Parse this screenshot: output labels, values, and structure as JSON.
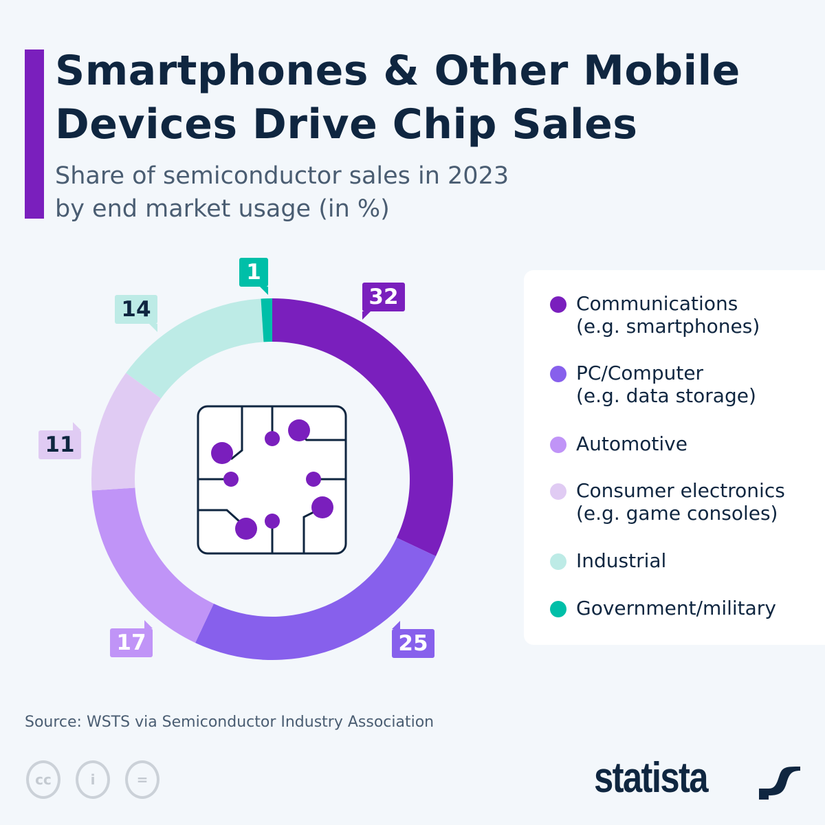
{
  "header": {
    "title_line1": "Smartphones & Other Mobile",
    "title_line2": "Devices Drive Chip Sales",
    "subtitle_line1": "Share of semiconductor sales in 2023",
    "subtitle_line2": "by end market usage (in %)"
  },
  "chart_data": {
    "type": "pie",
    "variant": "donut",
    "title": "Smartphones & Other Mobile Devices Drive Chip Sales",
    "subtitle": "Share of semiconductor sales in 2023 by end market usage (in %)",
    "legend_placement": "right",
    "slices": [
      {
        "name": "Communications (e.g. smartphones)",
        "line1": "Communications",
        "line2": "(e.g. smartphones)",
        "value": 32,
        "label": "32",
        "color": "#7a1fbd",
        "text_color": "#ffffff"
      },
      {
        "name": "PC/Computer (e.g. data storage)",
        "line1": "PC/Computer",
        "line2": "(e.g. data storage)",
        "value": 25,
        "label": "25",
        "color": "#8760ec",
        "text_color": "#ffffff"
      },
      {
        "name": "Automotive",
        "line1": "Automotive",
        "line2": "",
        "value": 17,
        "label": "17",
        "color": "#c094f7",
        "text_color": "#ffffff"
      },
      {
        "name": "Consumer electronics (e.g. game consoles)",
        "line1": "Consumer electronics",
        "line2": "(e.g. game consoles)",
        "value": 11,
        "label": "11",
        "color": "#e0cbf3",
        "text_color": "#0f2640"
      },
      {
        "name": "Industrial",
        "line1": "Industrial",
        "line2": "",
        "value": 14,
        "label": "14",
        "color": "#bdebe6",
        "text_color": "#0f2640"
      },
      {
        "name": "Government/military",
        "line1": "Government/military",
        "line2": "",
        "value": 1,
        "label": "1",
        "color": "#00bfa8",
        "text_color": "#ffffff"
      }
    ]
  },
  "center_icon": "microchip-icon",
  "footer": {
    "source": "Source: WSTS via Semiconductor Industry Association",
    "license_icons": [
      "cc-icon",
      "attribution-icon",
      "no-derivatives-icon"
    ],
    "license_text": [
      "cc",
      "i",
      "="
    ],
    "logo": "statista"
  }
}
